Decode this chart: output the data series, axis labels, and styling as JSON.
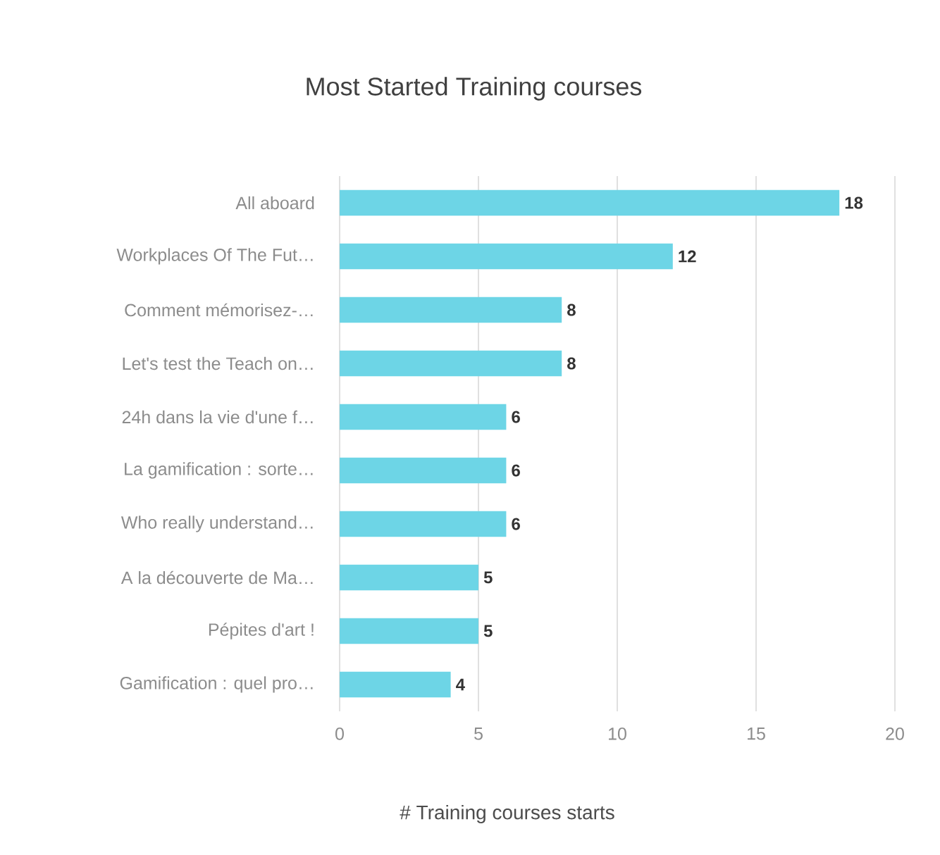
{
  "chart_data": {
    "type": "bar",
    "orientation": "horizontal",
    "title": "Most Started Training courses",
    "xlabel": "# Training courses starts",
    "categories": [
      "All aboard",
      "Workplaces Of The Fut…",
      "Comment mémorisez-…",
      "Let's test the Teach on…",
      "24h dans la vie d'une f…",
      "La gamification : sorte…",
      "Who really understand…",
      "A la découverte de Ma…",
      "Pépites d'art !",
      "Gamification : quel pro…"
    ],
    "values": [
      18,
      12,
      8,
      8,
      6,
      6,
      6,
      5,
      5,
      4
    ],
    "color": "#6dd5e6",
    "xlim": [
      0,
      20
    ],
    "xticks": [
      0,
      5,
      10,
      15,
      20
    ],
    "grid": "x",
    "data_labels": true
  }
}
